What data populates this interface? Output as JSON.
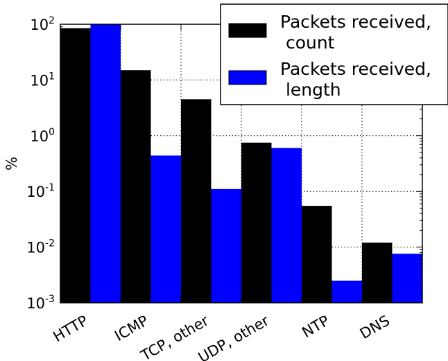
{
  "chart_data": {
    "type": "bar",
    "ylabel": "%",
    "yscale": "log",
    "ylim": [
      0.001,
      100
    ],
    "yticks": [
      {
        "base": "10",
        "exp": "2"
      },
      {
        "base": "10",
        "exp": "1"
      },
      {
        "base": "10",
        "exp": "0"
      },
      {
        "base": "10",
        "exp": "-1"
      },
      {
        "base": "10",
        "exp": "-2"
      },
      {
        "base": "10",
        "exp": "-3"
      }
    ],
    "categories": [
      "HTTP",
      "ICMP",
      "TCP, other",
      "UDP, other",
      "NTP",
      "DNS"
    ],
    "series": [
      {
        "name": "Packets received, count",
        "legend_lines": [
          "Packets received,",
          " count"
        ],
        "color": "#000000",
        "values": [
          85,
          15,
          4.5,
          0.75,
          0.055,
          0.012
        ]
      },
      {
        "name": "Packets received, length",
        "legend_lines": [
          "Packets received,",
          " length"
        ],
        "color": "#0000ff",
        "values": [
          100,
          0.44,
          0.11,
          0.6,
          0.0025,
          0.0076
        ]
      }
    ],
    "grid": true,
    "legend_position": "upper-right"
  }
}
